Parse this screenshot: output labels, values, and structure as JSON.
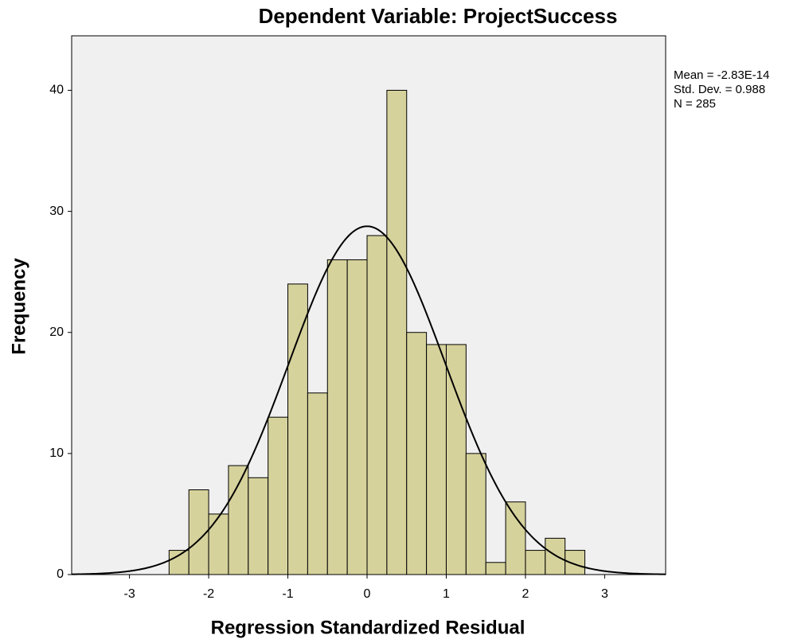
{
  "chart_data": {
    "type": "histogram",
    "title": "Dependent Variable: ProjectSuccess",
    "xlabel": "Regression Standardized Residual",
    "ylabel": "Frequency",
    "bins": [
      -2.5,
      -2.25,
      -2.0,
      -1.75,
      -1.5,
      -1.25,
      -1.0,
      -0.75,
      -0.5,
      -0.25,
      0.0,
      0.25,
      0.5,
      0.75,
      1.0,
      1.25,
      1.5,
      1.75,
      2.0,
      2.25,
      2.5,
      2.75
    ],
    "values": [
      2,
      7,
      5,
      9,
      8,
      13,
      24,
      15,
      26,
      26,
      28,
      40,
      20,
      19,
      19,
      10,
      1,
      6,
      2,
      3,
      2
    ],
    "color": "#d6d29c",
    "background": "#f0f0f0",
    "xlim": [
      -3.73,
      3.77
    ],
    "ylim": [
      0,
      44.5
    ],
    "xticks": [
      -3,
      -2,
      -1,
      0,
      1,
      2,
      3
    ],
    "yticks": [
      0,
      10,
      20,
      30,
      40
    ],
    "stats": [
      {
        "label": "Mean = -2.83E-14",
        "value": -2.83e-14
      },
      {
        "label": "Std. Dev. = 0.988",
        "value": 0.988
      },
      {
        "label": "N = 285",
        "value": 285
      }
    ]
  }
}
